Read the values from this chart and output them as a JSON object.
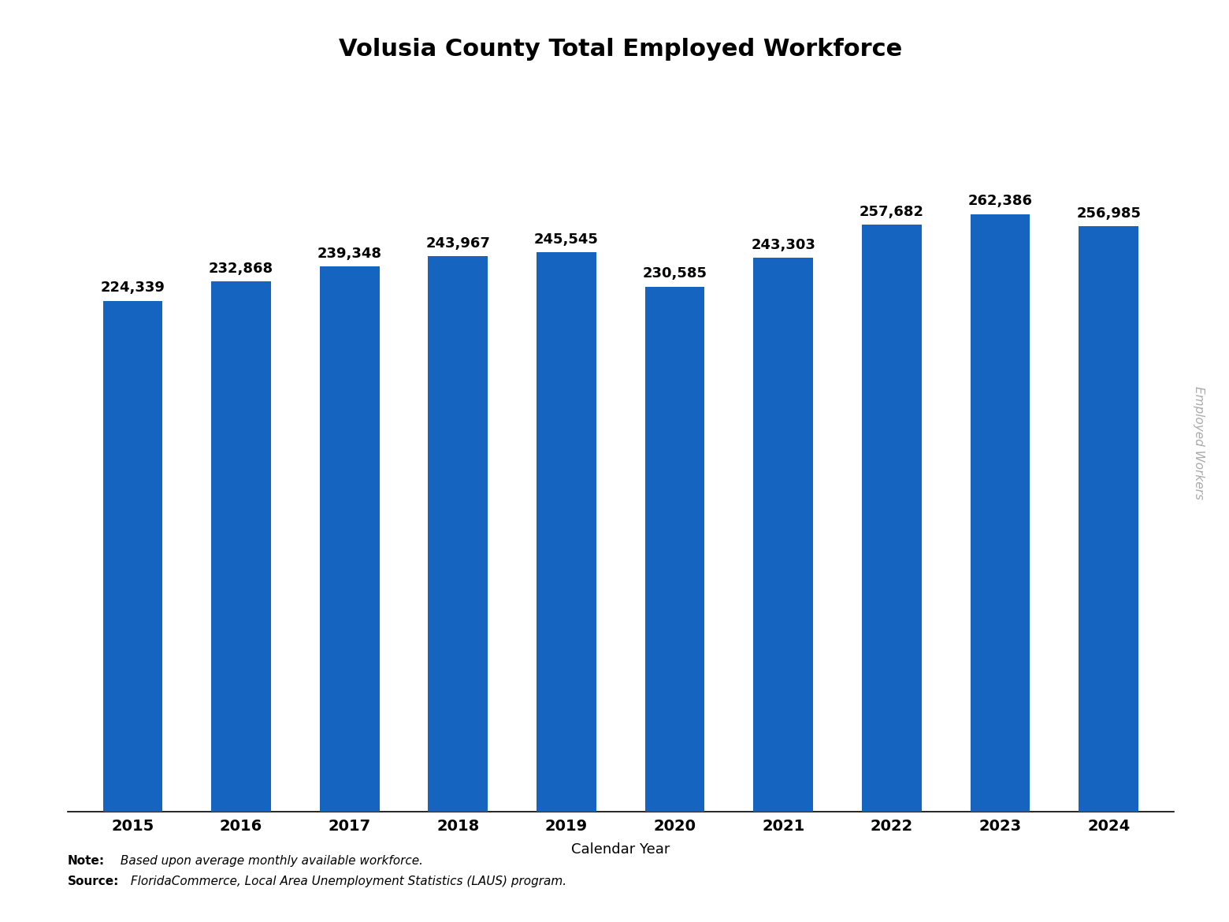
{
  "title": "Volusia County Total Employed Workforce",
  "xlabel": "Calendar Year",
  "ylabel": "Employed Workers",
  "years": [
    2015,
    2016,
    2017,
    2018,
    2019,
    2020,
    2021,
    2022,
    2023,
    2024
  ],
  "values": [
    224339,
    232868,
    239348,
    243967,
    245545,
    230585,
    243303,
    257682,
    262386,
    256985
  ],
  "bar_color": "#1565C0",
  "bar_labels": [
    "224,339",
    "232,868",
    "239,348",
    "243,967",
    "245,545",
    "230,585",
    "243,303",
    "257,682",
    "262,386",
    "256,985"
  ],
  "note_bold": "Note:",
  "note_text": " Based upon average monthly available workforce.",
  "source_bold": "Source:",
  "source_text": " FloridaCommerce, Local Area Unemployment Statistics (LAUS) program.",
  "title_fontsize": 22,
  "xlabel_fontsize": 13,
  "tick_fontsize": 14,
  "bar_label_fontsize": 13,
  "ylabel_fontsize": 11,
  "note_fontsize": 11,
  "ylim": [
    0,
    320000
  ],
  "background_color": "#ffffff"
}
